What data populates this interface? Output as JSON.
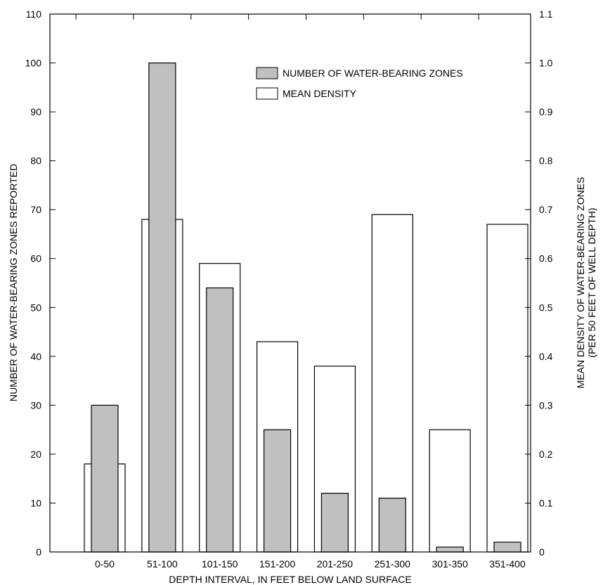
{
  "chart_data": {
    "type": "bar",
    "categories": [
      "0-50",
      "51-100",
      "101-150",
      "151-200",
      "201-250",
      "251-300",
      "301-350",
      "351-400"
    ],
    "series": [
      {
        "name": "NUMBER OF WATER-BEARING ZONES",
        "axis": "left",
        "color": "#c0c0c0",
        "values": [
          30,
          100,
          54,
          25,
          12,
          11,
          1,
          2
        ]
      },
      {
        "name": "MEAN DENSITY",
        "axis": "right",
        "color": "#ffffff",
        "values": [
          0.18,
          0.68,
          0.59,
          0.43,
          0.38,
          0.69,
          0.25,
          0.67
        ]
      }
    ],
    "xlabel": "DEPTH INTERVAL, IN FEET BELOW LAND SURFACE",
    "ylabel": "NUMBER OF WATER-BEARING ZONES REPORTED",
    "ylabel_right_line1": "MEAN DENSITY OF WATER-BEARING ZONES",
    "ylabel_right_line2": "(PER 50 FEET OF WELL DEPTH)",
    "ylim": [
      0,
      110
    ],
    "ylim_right": [
      0,
      1.1
    ],
    "yticks": [
      "0",
      "10",
      "20",
      "30",
      "40",
      "50",
      "60",
      "70",
      "80",
      "90",
      "100",
      "110"
    ],
    "yticks_right": [
      "0",
      "0.1",
      "0.2",
      "0.3",
      "0.4",
      "0.5",
      "0.6",
      "0.7",
      "0.8",
      "0.9",
      "1.0",
      "1.1"
    ],
    "legend_position": "top-right",
    "grid": false
  }
}
